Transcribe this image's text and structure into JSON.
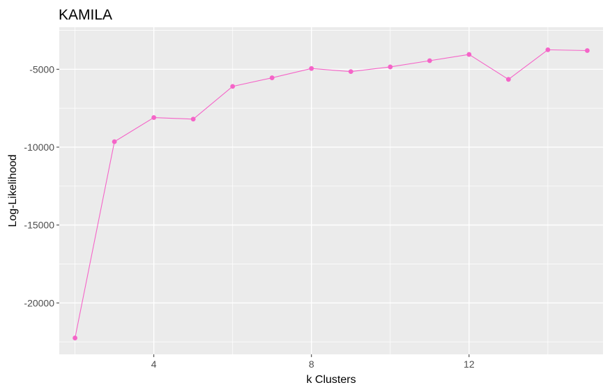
{
  "chart_data": {
    "type": "line",
    "title": "KAMILA",
    "xlabel": "k Clusters",
    "ylabel": "Log-Likelihood",
    "x": [
      2,
      3,
      4,
      5,
      6,
      7,
      8,
      9,
      10,
      11,
      12,
      13,
      14,
      15
    ],
    "series": [
      {
        "values": [
          -22250,
          -9650,
          -8100,
          -8200,
          -6100,
          -5550,
          -4950,
          -5150,
          -4850,
          -4450,
          -4050,
          -5650,
          -3750,
          -3800
        ],
        "color": "#f564c8"
      }
    ],
    "xlim": [
      1.6,
      15.4
    ],
    "ylim": [
      -23300,
      -2300
    ],
    "x_major_ticks": [
      4,
      8,
      12
    ],
    "x_tick_labels": [
      "4",
      "8",
      "12"
    ],
    "y_major_ticks": [
      -20000,
      -15000,
      -10000,
      -5000
    ],
    "y_tick_labels": [
      "-20000",
      "-15000",
      "-10000",
      "-5000"
    ],
    "grid": true,
    "panel_background": "#ebebeb",
    "grid_color": "#ffffff",
    "legend": "none"
  }
}
